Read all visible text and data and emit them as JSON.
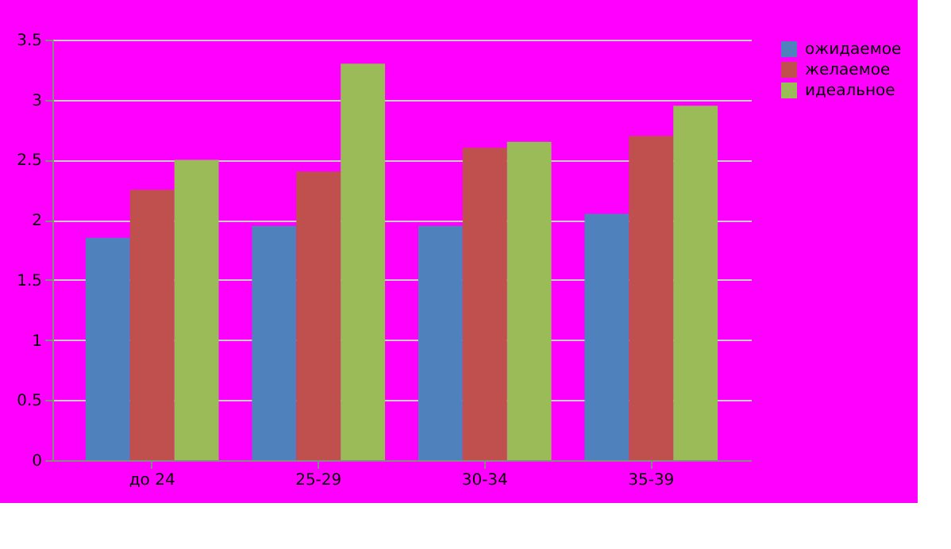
{
  "chart_data": {
    "type": "bar",
    "categories": [
      "до 24",
      "25-29",
      "30-34",
      "35-39"
    ],
    "series": [
      {
        "name": "ожидаемое",
        "color": "#4f81bd",
        "values": [
          1.85,
          1.95,
          1.95,
          2.05
        ]
      },
      {
        "name": "желаемое",
        "color": "#c0504d",
        "values": [
          2.25,
          2.4,
          2.6,
          2.7
        ]
      },
      {
        "name": "идеальное",
        "color": "#9bbb59",
        "values": [
          2.5,
          3.3,
          2.65,
          2.95
        ]
      }
    ],
    "ylim": [
      0,
      3.5
    ],
    "yticks": [
      0,
      0.5,
      1,
      1.5,
      2,
      2.5,
      3,
      3.5
    ],
    "grid": "y",
    "legend": "right"
  }
}
